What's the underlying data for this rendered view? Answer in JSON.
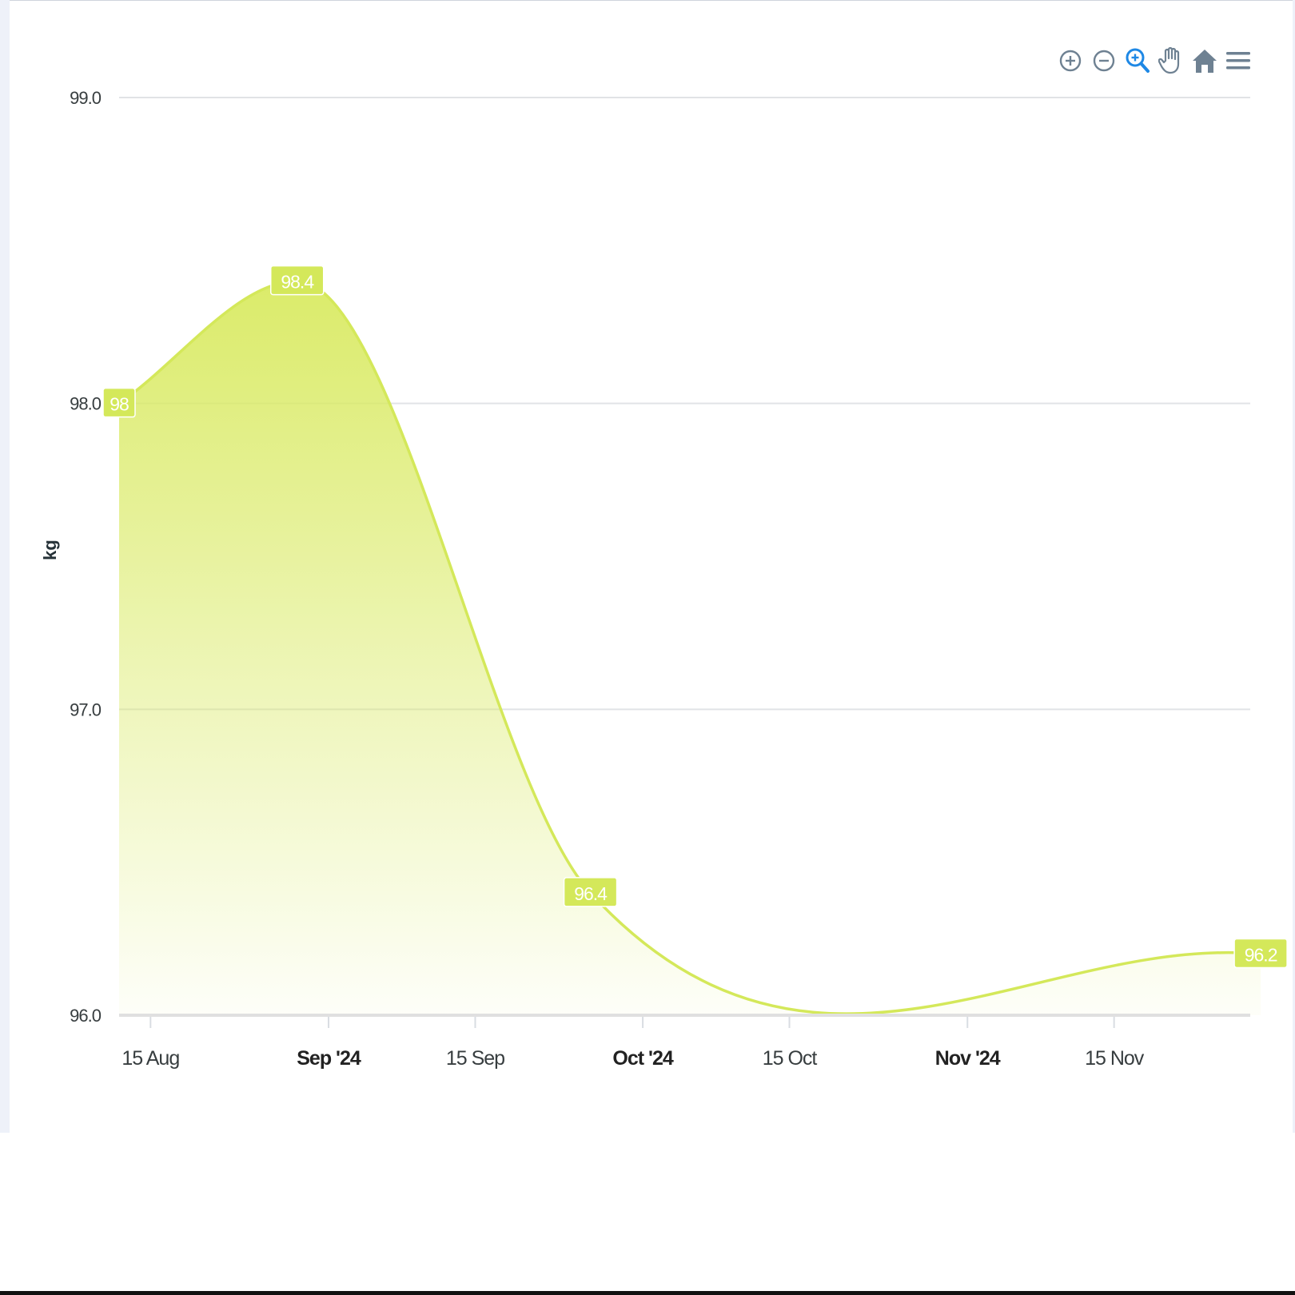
{
  "toolbar": {
    "icons": [
      "zoom-in-icon",
      "zoom-out-icon",
      "selection-zoom-icon",
      "pan-hand-icon",
      "reset-home-icon",
      "menu-icon"
    ],
    "color": "#6e8192",
    "active_color": "#1e88e5"
  },
  "chart_data": {
    "type": "area",
    "ylabel": "kg",
    "xlabel": "",
    "ylim": [
      96.0,
      99.0
    ],
    "y_ticks": [
      "96.0",
      "97.0",
      "98.0",
      "99.0"
    ],
    "x_ticks": [
      {
        "label": "15 Aug",
        "date": "2024-08-15",
        "bold": false
      },
      {
        "label": "Sep '24",
        "date": "2024-09-01",
        "bold": true
      },
      {
        "label": "15 Sep",
        "date": "2024-09-15",
        "bold": false
      },
      {
        "label": "Oct '24",
        "date": "2024-10-01",
        "bold": true
      },
      {
        "label": "15 Oct",
        "date": "2024-10-15",
        "bold": false
      },
      {
        "label": "Nov '24",
        "date": "2024-11-01",
        "bold": true
      },
      {
        "label": "15 Nov",
        "date": "2024-11-15",
        "bold": false
      }
    ],
    "xlim": [
      "2024-08-12",
      "2024-11-28"
    ],
    "series": [
      {
        "points": [
          {
            "date": "2024-08-12",
            "value": 98,
            "label": "98"
          },
          {
            "date": "2024-08-29",
            "value": 98.4,
            "label": "98.4"
          },
          {
            "date": "2024-09-26",
            "value": 96.4,
            "label": "96.4"
          },
          {
            "date": "2024-11-29",
            "value": 96.2,
            "label": "96.2"
          }
        ]
      }
    ],
    "line_color": "#d4e85a",
    "fill_color": "#d9ea62",
    "grid": true,
    "legend": "none"
  }
}
